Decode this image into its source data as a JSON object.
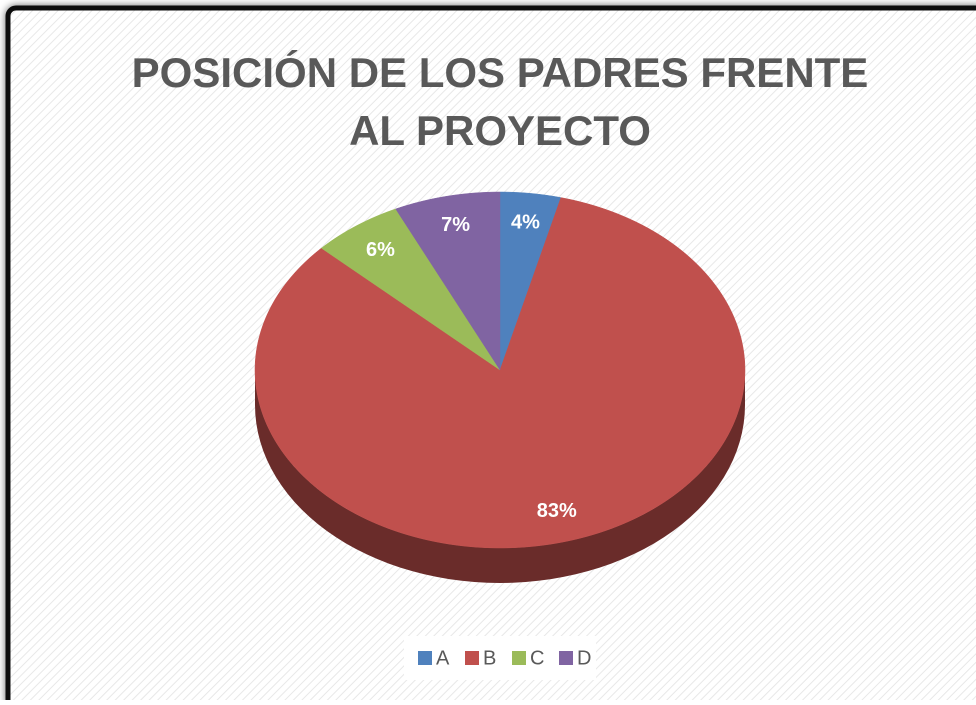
{
  "chart_data": {
    "type": "pie",
    "title": "POSICIÓN DE LOS PADRES FRENTE AL PROYECTO",
    "categories": [
      "A",
      "B",
      "C",
      "D"
    ],
    "values": [
      4,
      83,
      6,
      7
    ],
    "value_labels": [
      "4%",
      "83%",
      "6%",
      "7%"
    ],
    "colors": [
      "#4f81bd",
      "#c0504d",
      "#9bbb59",
      "#8064a2"
    ],
    "legend": "bottom"
  }
}
